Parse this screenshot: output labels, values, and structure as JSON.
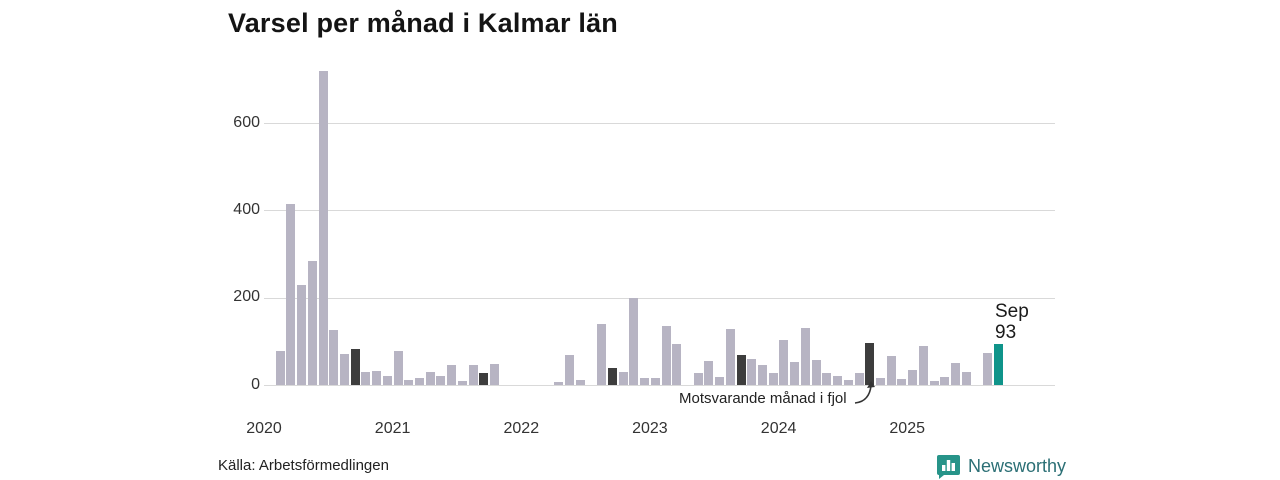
{
  "title": "Varsel per månad i Kalmar län",
  "source": "Källa: Arbetsförmedlingen",
  "logo": {
    "text": "Newsworthy"
  },
  "annotation": {
    "text": "Motsvarande månad i fjol",
    "points_to": "2024-09"
  },
  "highlight_label": {
    "line1": "Sep",
    "line2": "93"
  },
  "colors": {
    "bar": "#b7b4c3",
    "bar_same_month_prev_years": "#3d3d3d",
    "bar_highlight": "#0f948a",
    "gridline": "#d9d9d9",
    "axis_text": "#333333",
    "title_text": "#141414",
    "logo_text": "#2b6f75",
    "logo_icon": "#279489"
  },
  "y_axis": {
    "ticks": [
      0,
      200,
      400,
      600
    ]
  },
  "x_axis": {
    "years": [
      "2020",
      "2021",
      "2022",
      "2023",
      "2024",
      "2025"
    ]
  },
  "chart_data": {
    "type": "bar",
    "title": "Varsel per månad i Kalmar län",
    "xlabel": "",
    "ylabel": "",
    "ylim": [
      0,
      740
    ],
    "grid": "horizontal",
    "x": [
      "2020-02",
      "2020-03",
      "2020-04",
      "2020-05",
      "2020-06",
      "2020-07",
      "2020-08",
      "2020-09",
      "2020-10",
      "2020-11",
      "2020-12",
      "2021-01",
      "2021-02",
      "2021-03",
      "2021-04",
      "2021-05",
      "2021-06",
      "2021-07",
      "2021-08",
      "2021-09",
      "2021-10",
      "2021-11",
      "2021-12",
      "2022-01",
      "2022-02",
      "2022-03",
      "2022-04",
      "2022-05",
      "2022-06",
      "2022-07",
      "2022-08",
      "2022-09",
      "2022-10",
      "2022-11",
      "2022-12",
      "2023-01",
      "2023-02",
      "2023-03",
      "2023-04",
      "2023-05",
      "2023-06",
      "2023-07",
      "2023-08",
      "2023-09",
      "2023-10",
      "2023-11",
      "2023-12",
      "2024-01",
      "2024-02",
      "2024-03",
      "2024-04",
      "2024-05",
      "2024-06",
      "2024-07",
      "2024-08",
      "2024-09",
      "2024-10",
      "2024-11",
      "2024-12",
      "2025-01",
      "2025-02",
      "2025-03",
      "2025-04",
      "2025-05",
      "2025-06",
      "2025-07",
      "2025-08",
      "2025-09"
    ],
    "values": [
      78,
      415,
      228,
      285,
      720,
      125,
      72,
      82,
      30,
      32,
      21,
      78,
      12,
      17,
      31,
      21,
      46,
      10,
      46,
      27,
      48,
      0,
      0,
      0,
      0,
      0,
      8,
      68,
      12,
      0,
      140,
      38,
      30,
      200,
      15,
      15,
      135,
      94,
      0,
      27,
      56,
      18,
      128,
      69,
      59,
      46,
      28,
      103,
      53,
      130,
      57,
      28,
      21,
      11,
      28,
      97,
      15,
      66,
      13,
      34,
      90,
      10,
      19,
      50,
      30,
      0,
      73,
      93
    ],
    "highlight_month": "2025-09",
    "highlight_value": 93,
    "emphasized_months": [
      "2020-09",
      "2021-09",
      "2022-09",
      "2023-09",
      "2024-09"
    ]
  }
}
